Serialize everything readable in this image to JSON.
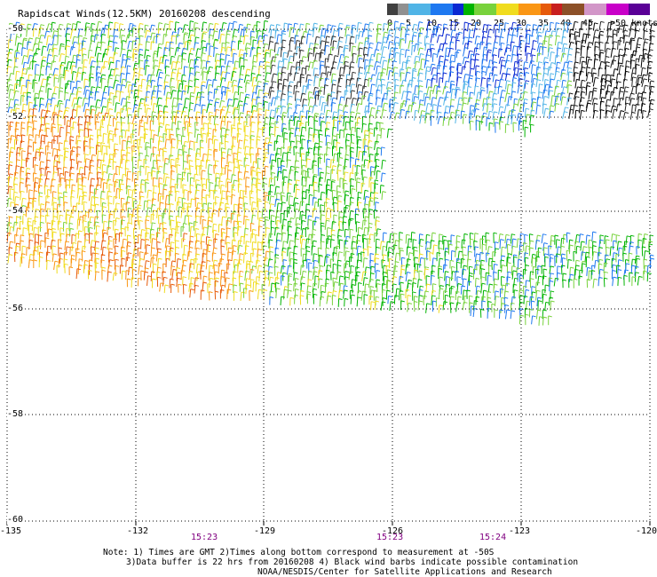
{
  "title": "Rapidscat Winds(12.5KM) 20160208 descending",
  "legend": {
    "colors": [
      "#404040",
      "#909090",
      "#50b4e6",
      "#1e78f0",
      "#0a28d2",
      "#00b400",
      "#78d23c",
      "#f0dc1e",
      "#fa9614",
      "#e65a0a",
      "#c81e1e",
      "#8c5028",
      "#d296c8",
      "#c800c8",
      "#5a0096"
    ],
    "labels": [
      "0",
      "5",
      "10",
      "15",
      "20",
      "25",
      "30",
      "35",
      "40",
      "45",
      ">50 knots"
    ]
  },
  "lat_labels": [
    "-50",
    "-52",
    "-54",
    "-56",
    "-58",
    "-60"
  ],
  "lon_labels": [
    "-135",
    "-132",
    "-129",
    "-126",
    "-123",
    "-120"
  ],
  "time_labels": [
    "15:23",
    "15:23",
    "15:24"
  ],
  "notes": [
    "Note: 1) Times are GMT 2)Times along bottom correspond to measurement at -50S",
    "3)Data buffer is 22 hrs from 20160208 4) Black wind barbs indicate possible contamination",
    "NOAA/NESDIS/Center for Satellite Applications and Research"
  ]
}
